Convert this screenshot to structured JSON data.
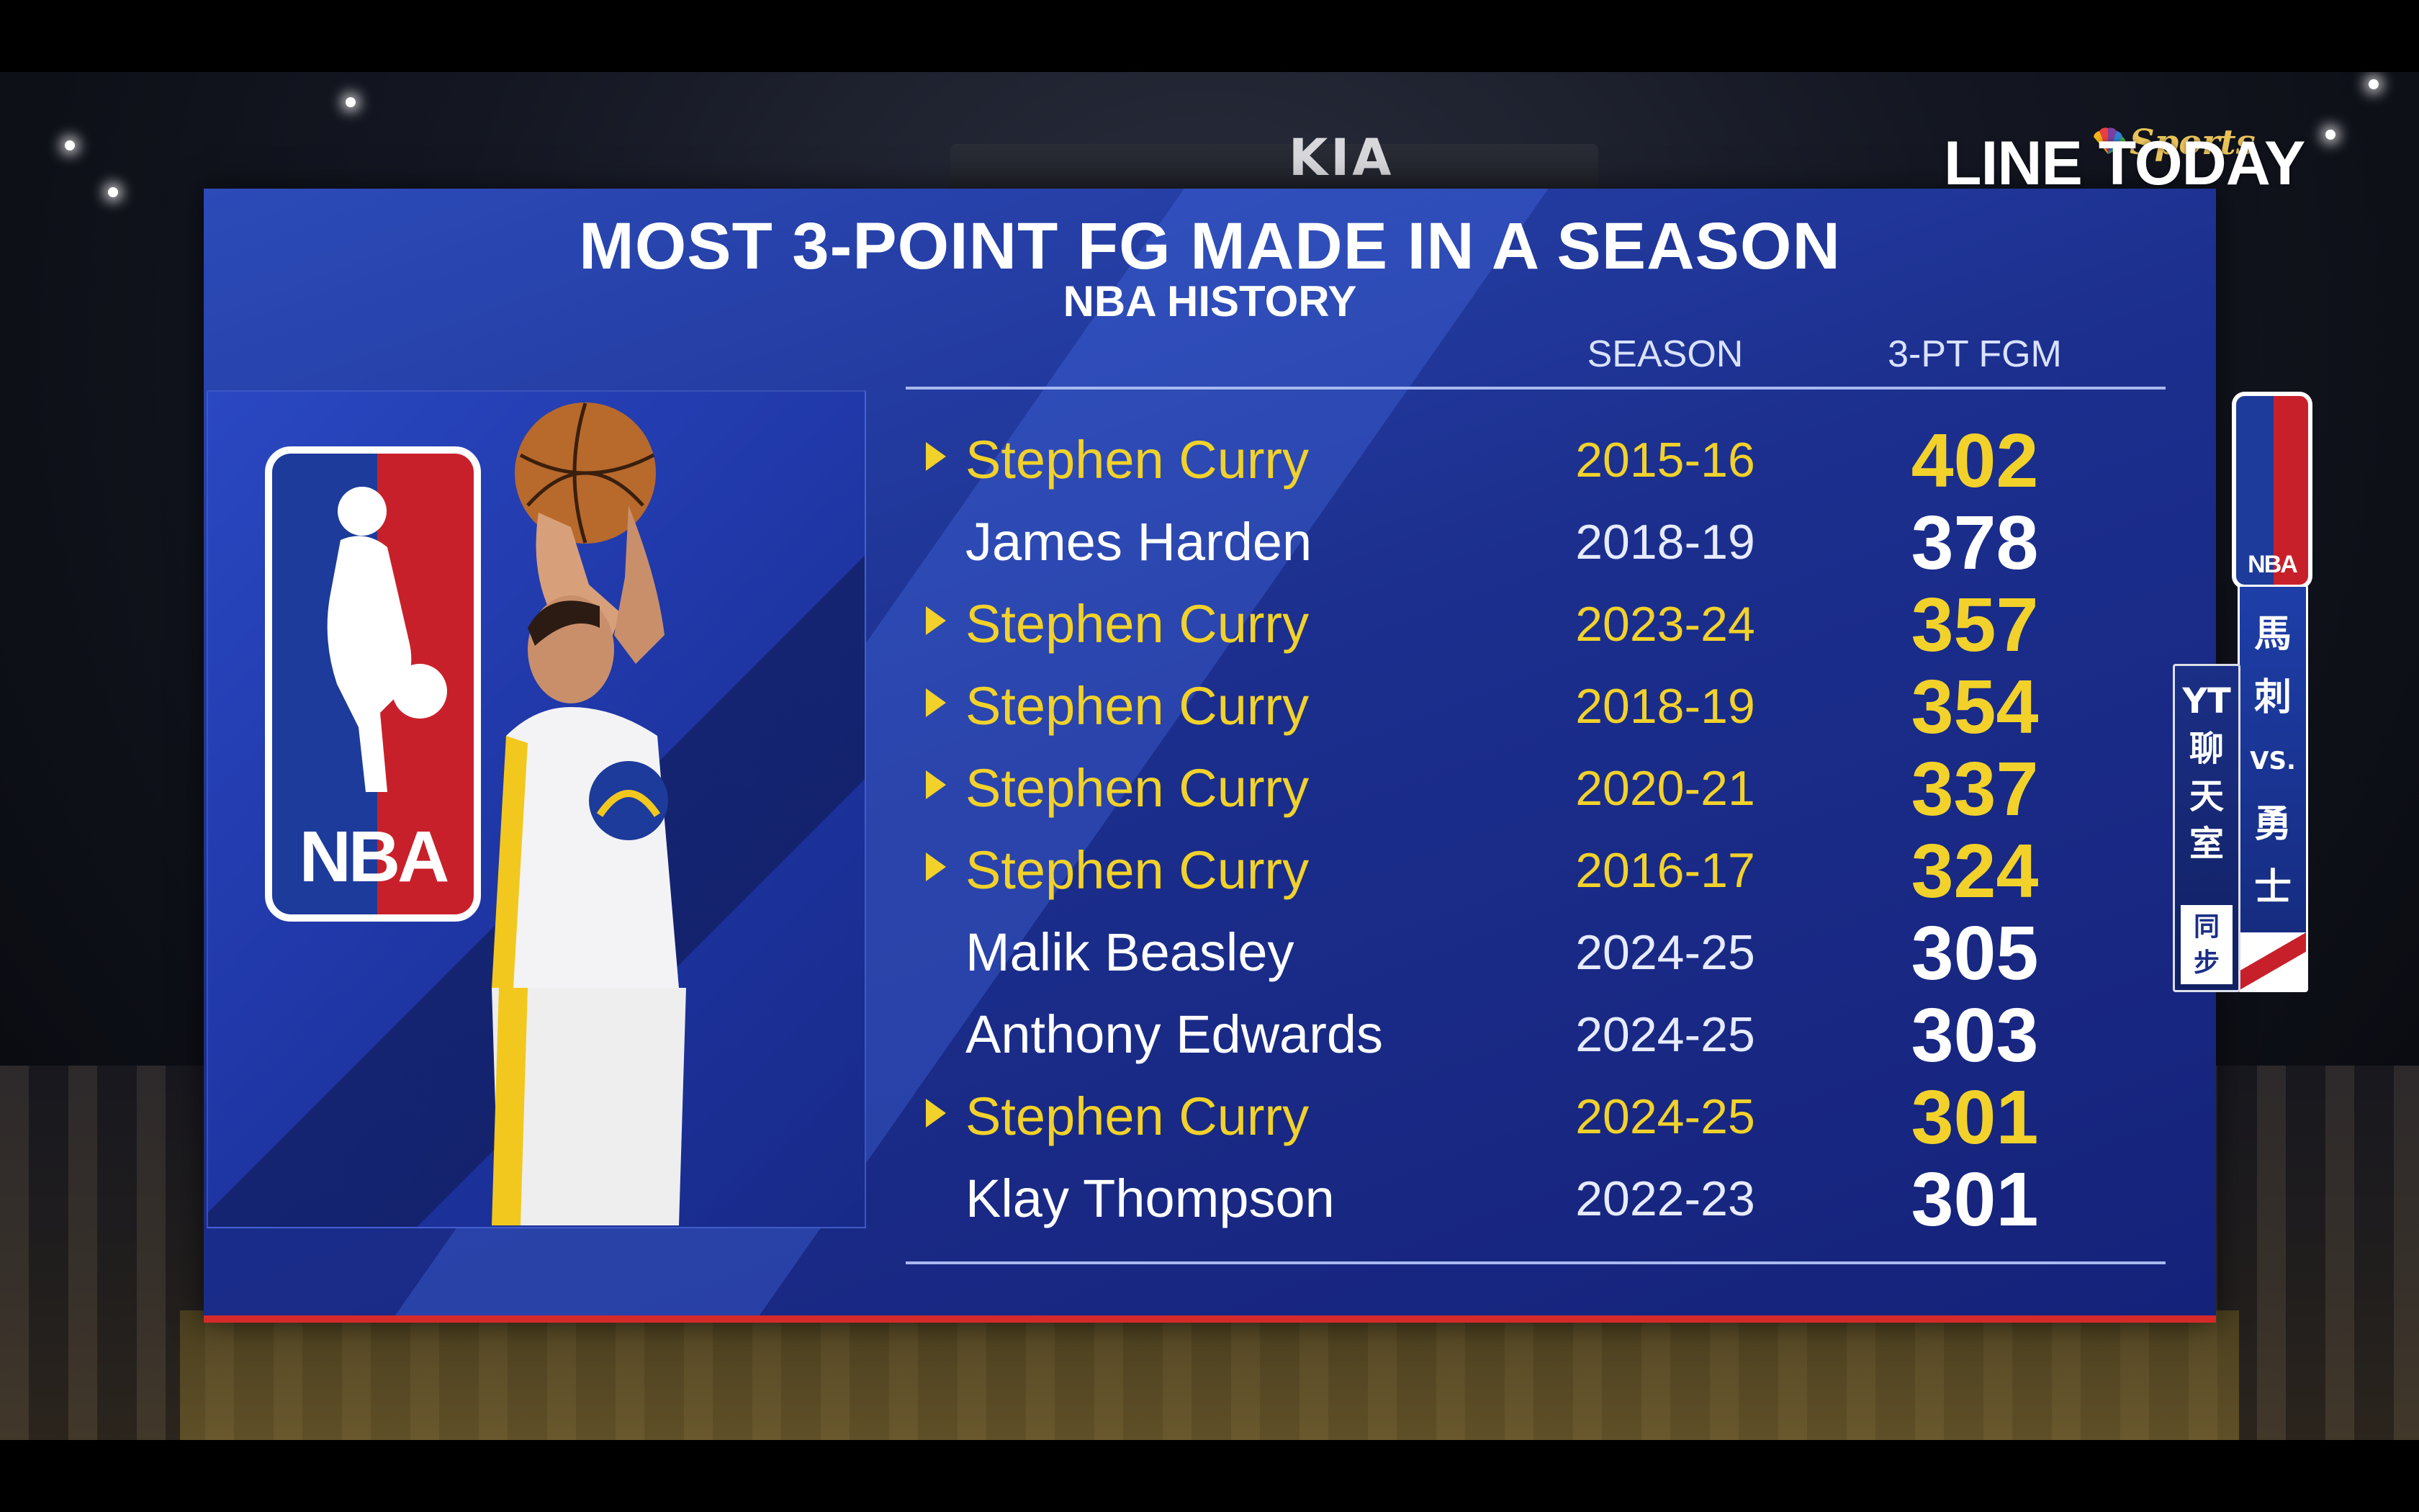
{
  "graphic": {
    "title": "MOST 3-POINT FG MADE IN A SEASON",
    "subtitle": "NBA HISTORY",
    "logo_text": "NBA",
    "columns": {
      "season": "SEASON",
      "value": "3-PT FGM"
    },
    "rows": [
      {
        "name": "Stephen Curry",
        "season": "2015-16",
        "value": "402",
        "highlight": true
      },
      {
        "name": "James Harden",
        "season": "2018-19",
        "value": "378",
        "highlight": false
      },
      {
        "name": "Stephen Curry",
        "season": "2023-24",
        "value": "357",
        "highlight": true
      },
      {
        "name": "Stephen Curry",
        "season": "2018-19",
        "value": "354",
        "highlight": true
      },
      {
        "name": "Stephen Curry",
        "season": "2020-21",
        "value": "337",
        "highlight": true
      },
      {
        "name": "Stephen Curry",
        "season": "2016-17",
        "value": "324",
        "highlight": true
      },
      {
        "name": "Malik Beasley",
        "season": "2024-25",
        "value": "305",
        "highlight": false
      },
      {
        "name": "Anthony Edwards",
        "season": "2024-25",
        "value": "303",
        "highlight": false
      },
      {
        "name": "Stephen Curry",
        "season": "2024-25",
        "value": "301",
        "highlight": true
      },
      {
        "name": "Klay Thompson",
        "season": "2022-23",
        "value": "301",
        "highlight": false
      }
    ],
    "highlight_color": "#f2d22a"
  },
  "background": {
    "arena_sign": "KIA"
  },
  "watermark": {
    "brand": "LINE TODAY",
    "network": "Sports"
  },
  "side": {
    "logo_text": "NBA",
    "matchup_chars": [
      "馬",
      "刺",
      "VS.",
      "勇",
      "士"
    ],
    "yt_chars": [
      "YT",
      "聊",
      "天",
      "室"
    ],
    "sync_chars": [
      "同",
      "步"
    ]
  }
}
